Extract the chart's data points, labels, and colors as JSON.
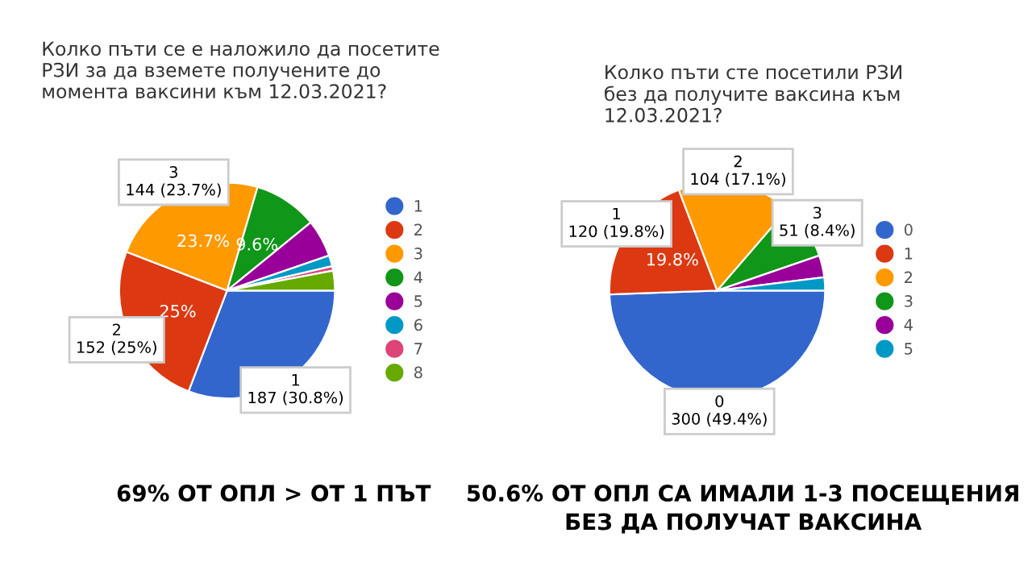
{
  "chart_data": [
    {
      "type": "pie",
      "title": "Колко пъти се е наложило да посетите РЗИ за да вземете получените до момента ваксини към 12.03.2021?",
      "categories": [
        "1",
        "2",
        "3",
        "4",
        "5",
        "6",
        "7",
        "8"
      ],
      "values": [
        187,
        152,
        144,
        58,
        34,
        10,
        4,
        18
      ],
      "colors": [
        "#3366cc",
        "#dc3912",
        "#ff9900",
        "#109618",
        "#990099",
        "#0099c6",
        "#dd4477",
        "#66aa00"
      ],
      "value_labels": [
        "187 (30.8%)",
        "152 (25%)",
        "144 (23.7%)",
        null,
        null,
        null,
        null,
        null
      ],
      "annotations": [
        {
          "text": "25%",
          "x": "2"
        },
        {
          "text": "23.7%",
          "x": "3"
        },
        {
          "text": "9.6%",
          "x": "4"
        },
        "69% ОТ ОПЛ > ОТ 1 ПЪТ"
      ],
      "legend": "right"
    },
    {
      "type": "pie",
      "title": "Колко пъти сте посетили РЗИ без да получите ваксина към 12.03.2021?",
      "categories": [
        "0",
        "1",
        "2",
        "3",
        "4",
        "5"
      ],
      "values": [
        300,
        120,
        104,
        51,
        20,
        12
      ],
      "colors": [
        "#3366cc",
        "#dc3912",
        "#ff9900",
        "#109618",
        "#990099",
        "#0099c6"
      ],
      "value_labels": [
        "300 (49.4%)",
        "120 (19.8%)",
        "104 (17.1%)",
        "51 (8.4%)",
        null,
        null
      ],
      "annotations": [
        {
          "text": "19.8%",
          "x": "1"
        },
        "50.6% ОТ ОПЛ СА ИМАЛИ 1-3 ПОСЕЩЕНИЯ БЕЗ ДА ПОЛУЧАТ ВАКСИНА"
      ],
      "legend": "right"
    }
  ]
}
